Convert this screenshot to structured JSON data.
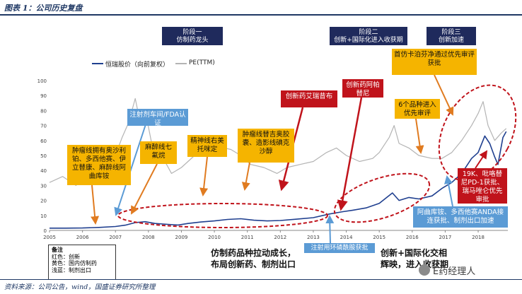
{
  "header": {
    "title": "图表 1：公司历史复盘"
  },
  "stages": [
    {
      "line1": "阶段一",
      "line2": "仿制药龙头"
    },
    {
      "line1": "阶段二",
      "line2": "创新+国际化进入收获期"
    },
    {
      "line1": "阶段三",
      "line2": "创新加速"
    }
  ],
  "legend": {
    "stock": "恒瑞股价（向前复权）",
    "pe": "PE(TTM)"
  },
  "annotations": {
    "y1": "肿瘤线拥有奥沙利铂、多西他赛、伊立替康、麻醉线阿曲库铵",
    "y2": "麻醉线七氟烷",
    "y3": "精神线右美托咪定",
    "y4": "肿瘤线替吉奥胶囊、造影线碘克沙醇",
    "y5": "首仿卡泊芬净通过优先审评获批",
    "y6": "6个品种进入优先审评",
    "r1": "创新药艾瑞昔布",
    "r2": "创新药阿帕替尼",
    "r3": "19K、吡咯替尼PD-1获批、瑞马唑仑优先审批",
    "b1": "注射剂车间/FDA认证",
    "b2": "注射用环磷酰胺获批",
    "b3": "阿曲库铵、多西他赛ANDA接连获批、制剂出口加速"
  },
  "note": {
    "title": "备注",
    "red": "红色：创新",
    "yellow": "黄色：国内仿制药",
    "blue": "浅蓝：制剂出口"
  },
  "bottom": {
    "left1": "仿制药品种拉动成长，",
    "left2": "布局创新药、制剂出口",
    "right1": "创新+国际化交相",
    "right2": "辉映，进入收获期"
  },
  "footer": {
    "source": "资料来源：公司公告，wind，国盛证券研究所整理"
  },
  "watermark": {
    "text": "E药经理人"
  },
  "chart_data": {
    "type": "line",
    "x_ticks": [
      "2005",
      "2006",
      "2007",
      "2008",
      "2009",
      "2010",
      "2011",
      "2012",
      "2013",
      "2014",
      "2015",
      "2016",
      "2017",
      "2018"
    ],
    "y_ticks": [
      0,
      10,
      20,
      30,
      40,
      50,
      60,
      70,
      80,
      90,
      100
    ],
    "ylim": [
      0,
      100
    ],
    "xlim": [
      2005,
      2018.9
    ],
    "series": [
      {
        "name": "恒瑞股价（向前复权）",
        "color": "#1f3f8f",
        "points": [
          [
            2005.0,
            1.5
          ],
          [
            2005.5,
            1.5
          ],
          [
            2006.0,
            1.6
          ],
          [
            2006.5,
            2.0
          ],
          [
            2007.0,
            2.6
          ],
          [
            2007.3,
            3.5
          ],
          [
            2007.6,
            5.2
          ],
          [
            2007.9,
            5.8
          ],
          [
            2008.2,
            4.6
          ],
          [
            2008.6,
            4.0
          ],
          [
            2008.9,
            3.6
          ],
          [
            2009.2,
            4.6
          ],
          [
            2009.6,
            5.6
          ],
          [
            2010.0,
            6.3
          ],
          [
            2010.4,
            7.3
          ],
          [
            2010.8,
            7.8
          ],
          [
            2011.2,
            6.8
          ],
          [
            2011.6,
            6.3
          ],
          [
            2012.0,
            6.6
          ],
          [
            2012.5,
            7.5
          ],
          [
            2013.0,
            8.5
          ],
          [
            2013.5,
            11.0
          ],
          [
            2013.9,
            12.5
          ],
          [
            2014.2,
            13.5
          ],
          [
            2014.6,
            15.0
          ],
          [
            2015.0,
            18.0
          ],
          [
            2015.4,
            25.0
          ],
          [
            2015.6,
            20.0
          ],
          [
            2015.9,
            22.0
          ],
          [
            2016.2,
            21.0
          ],
          [
            2016.6,
            23.0
          ],
          [
            2016.9,
            28.0
          ],
          [
            2017.2,
            32.0
          ],
          [
            2017.5,
            38.0
          ],
          [
            2017.8,
            48.0
          ],
          [
            2018.0,
            52.0
          ],
          [
            2018.2,
            63.0
          ],
          [
            2018.35,
            58.0
          ],
          [
            2018.5,
            49.0
          ],
          [
            2018.6,
            44.0
          ],
          [
            2018.75,
            62.0
          ],
          [
            2018.85,
            66.0
          ]
        ]
      },
      {
        "name": "PE(TTM)",
        "color": "#b4b4b4",
        "points": [
          [
            2005.0,
            32
          ],
          [
            2005.4,
            36
          ],
          [
            2005.8,
            30
          ],
          [
            2006.0,
            33
          ],
          [
            2006.4,
            42
          ],
          [
            2006.8,
            40
          ],
          [
            2007.0,
            50
          ],
          [
            2007.2,
            62
          ],
          [
            2007.4,
            72
          ],
          [
            2007.6,
            88
          ],
          [
            2007.75,
            72
          ],
          [
            2007.9,
            80
          ],
          [
            2008.1,
            58
          ],
          [
            2008.4,
            50
          ],
          [
            2008.7,
            38
          ],
          [
            2009.0,
            42
          ],
          [
            2009.4,
            50
          ],
          [
            2009.8,
            52
          ],
          [
            2010.1,
            56
          ],
          [
            2010.5,
            54
          ],
          [
            2010.8,
            50
          ],
          [
            2011.1,
            44
          ],
          [
            2011.5,
            42
          ],
          [
            2011.9,
            38
          ],
          [
            2012.2,
            42
          ],
          [
            2012.6,
            44
          ],
          [
            2013.0,
            46
          ],
          [
            2013.4,
            52
          ],
          [
            2013.7,
            55
          ],
          [
            2014.0,
            50
          ],
          [
            2014.4,
            46
          ],
          [
            2014.8,
            48
          ],
          [
            2015.0,
            52
          ],
          [
            2015.3,
            62
          ],
          [
            2015.45,
            70
          ],
          [
            2015.6,
            58
          ],
          [
            2015.9,
            55
          ],
          [
            2016.2,
            50
          ],
          [
            2016.6,
            48
          ],
          [
            2016.9,
            48
          ],
          [
            2017.2,
            52
          ],
          [
            2017.5,
            60
          ],
          [
            2017.8,
            70
          ],
          [
            2018.0,
            78
          ],
          [
            2018.15,
            86
          ],
          [
            2018.3,
            70
          ],
          [
            2018.5,
            60
          ],
          [
            2018.7,
            65
          ],
          [
            2018.85,
            68
          ]
        ]
      }
    ]
  }
}
